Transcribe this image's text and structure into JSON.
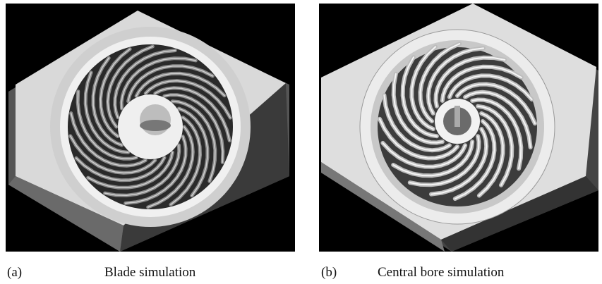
{
  "panels": [
    {
      "label": "(a)",
      "caption": "Blade simulation"
    },
    {
      "label": "(b)",
      "caption": "Central bore simulation"
    }
  ]
}
